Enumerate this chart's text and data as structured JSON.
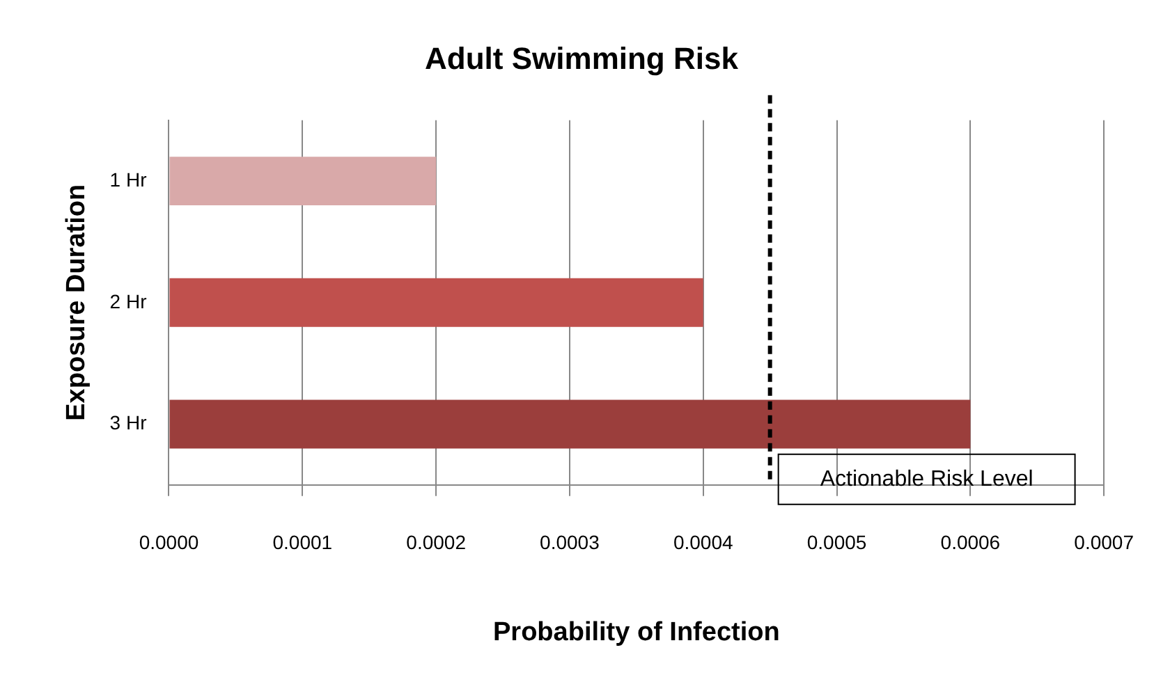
{
  "chart_data": {
    "type": "bar",
    "orientation": "horizontal",
    "title": "Adult Swimming Risk",
    "xlabel": "Probability of Infection",
    "ylabel": "Exposure Duration",
    "categories": [
      "1 Hr",
      "2 Hr",
      "3 Hr"
    ],
    "values": [
      0.0002,
      0.0004,
      0.0006
    ],
    "colors": [
      "#d9a9a9",
      "#c0504d",
      "#9b3e3c"
    ],
    "xlim": [
      0,
      0.0007
    ],
    "xticks": [
      {
        "value": 0,
        "label": "0.0000"
      },
      {
        "value": 0.0001,
        "label": "0.0001"
      },
      {
        "value": 0.0002,
        "label": "0.0002"
      },
      {
        "value": 0.0003,
        "label": "0.0003"
      },
      {
        "value": 0.0004,
        "label": "0.0004"
      },
      {
        "value": 0.0005,
        "label": "0.0005"
      },
      {
        "value": 0.0006,
        "label": "0.0006"
      },
      {
        "value": 0.0007,
        "label": "0.0007"
      }
    ],
    "ref_lines": [
      {
        "axis": "x",
        "value": 0.00045,
        "label": "Actionable Risk Level",
        "color": "#000000",
        "line_style": "dashed"
      }
    ],
    "grid": "x",
    "legend": false
  }
}
